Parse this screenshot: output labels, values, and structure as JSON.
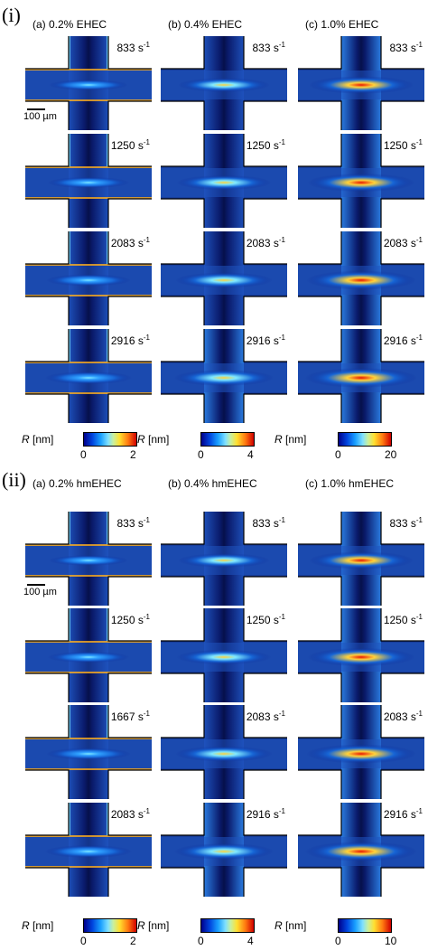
{
  "sections": [
    {
      "label": "(i)",
      "columns": [
        {
          "title": "(a) 0.2% EHEC",
          "intensity": 0.35,
          "rates": [
            "833",
            "1250",
            "2083",
            "2916"
          ],
          "colorbar": {
            "title_symbol": "R",
            "title_unit": "[nm]",
            "min": "0",
            "max": "2"
          }
        },
        {
          "title": "(b) 0.4% EHEC",
          "intensity": 0.6,
          "rates": [
            "833",
            "1250",
            "2083",
            "2916"
          ],
          "colorbar": {
            "title_symbol": "R",
            "title_unit": "[nm]",
            "min": "0",
            "max": "4"
          }
        },
        {
          "title": "(c) 1.0% EHEC",
          "intensity": 0.85,
          "rates": [
            "833",
            "1250",
            "2083",
            "2916"
          ],
          "colorbar": {
            "title_symbol": "R",
            "title_unit": "[nm]",
            "min": "0",
            "max": "20"
          }
        }
      ]
    },
    {
      "label": "(ii)",
      "columns": [
        {
          "title": "(a) 0.2% hmEHEC",
          "intensity": 0.35,
          "rates": [
            "833",
            "1250",
            "1667",
            "2083"
          ],
          "colorbar": {
            "title_symbol": "R",
            "title_unit": "[nm]",
            "min": "0",
            "max": "2"
          }
        },
        {
          "title": "(b) 0.4% hmEHEC",
          "intensity": 0.6,
          "rates": [
            "833",
            "1250",
            "2083",
            "2916"
          ],
          "colorbar": {
            "title_symbol": "R",
            "title_unit": "[nm]",
            "min": "0",
            "max": "4"
          }
        },
        {
          "title": "(c) 1.0% hmEHEC",
          "intensity": 0.85,
          "rates": [
            "833",
            "1250",
            "2083",
            "2916"
          ],
          "colorbar": {
            "title_symbol": "R",
            "title_unit": "[nm]",
            "min": "0",
            "max": "10"
          }
        }
      ]
    }
  ],
  "rate_unit": "s",
  "rate_unit_exponent": "-1",
  "scale_bar_label": "100 µm"
}
